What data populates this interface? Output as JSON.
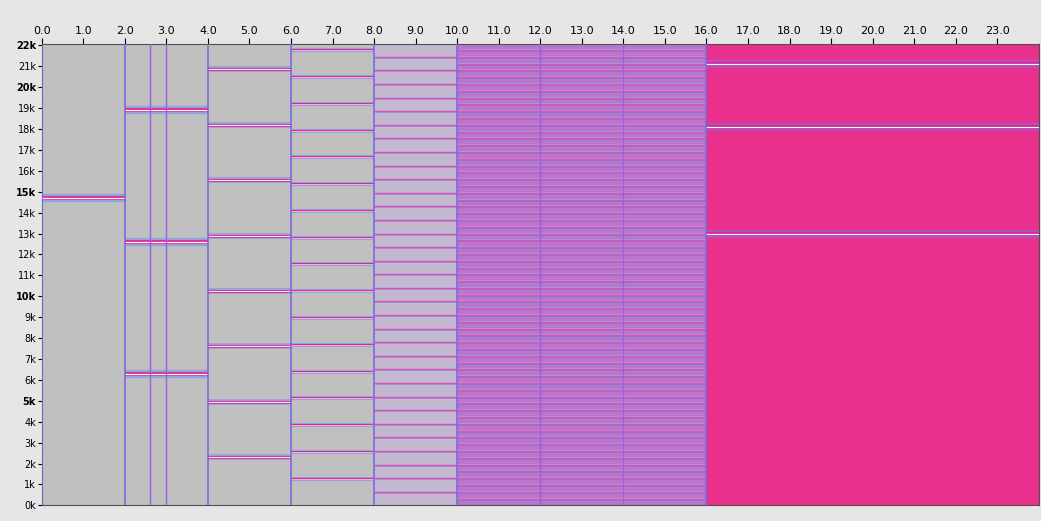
{
  "chart_data": {
    "type": "spectrogram",
    "xlim": [
      0,
      24
    ],
    "xticks": [
      {
        "value": 0,
        "label": "0.0"
      },
      {
        "value": 1,
        "label": "1.0"
      },
      {
        "value": 2,
        "label": "2.0"
      },
      {
        "value": 3,
        "label": "3.0"
      },
      {
        "value": 4,
        "label": "4.0"
      },
      {
        "value": 5,
        "label": "5.0"
      },
      {
        "value": 6,
        "label": "6.0"
      },
      {
        "value": 7,
        "label": "7.0"
      },
      {
        "value": 8,
        "label": "8.0"
      },
      {
        "value": 9,
        "label": "9.0"
      },
      {
        "value": 10,
        "label": "10.0"
      },
      {
        "value": 11,
        "label": "11.0"
      },
      {
        "value": 12,
        "label": "12.0"
      },
      {
        "value": 13,
        "label": "13.0"
      },
      {
        "value": 14,
        "label": "14.0"
      },
      {
        "value": 15,
        "label": "15.0"
      },
      {
        "value": 16,
        "label": "16.0"
      },
      {
        "value": 17,
        "label": "17.0"
      },
      {
        "value": 18,
        "label": "18.0"
      },
      {
        "value": 19,
        "label": "19.0"
      },
      {
        "value": 20,
        "label": "20.0"
      },
      {
        "value": 21,
        "label": "21.0"
      },
      {
        "value": 22,
        "label": "22.0"
      },
      {
        "value": 23,
        "label": "23.0"
      }
    ],
    "ylim": [
      0,
      22050
    ],
    "yticks": [
      {
        "value": 0,
        "label": "0k"
      },
      {
        "value": 1000,
        "label": "1k"
      },
      {
        "value": 2000,
        "label": "2k"
      },
      {
        "value": 3000,
        "label": "3k"
      },
      {
        "value": 4000,
        "label": "4k"
      },
      {
        "value": 5000,
        "label": "5k"
      },
      {
        "value": 6000,
        "label": "6k"
      },
      {
        "value": 7000,
        "label": "7k"
      },
      {
        "value": 8000,
        "label": "8k"
      },
      {
        "value": 9000,
        "label": "9k"
      },
      {
        "value": 10000,
        "label": "10k"
      },
      {
        "value": 11000,
        "label": "11k"
      },
      {
        "value": 12000,
        "label": "12k"
      },
      {
        "value": 13000,
        "label": "13k"
      },
      {
        "value": 14000,
        "label": "14k"
      },
      {
        "value": 15000,
        "label": "15k"
      },
      {
        "value": 16000,
        "label": "16k"
      },
      {
        "value": 17000,
        "label": "17k"
      },
      {
        "value": 18000,
        "label": "18k"
      },
      {
        "value": 19000,
        "label": "19k"
      },
      {
        "value": 20000,
        "label": "20k"
      },
      {
        "value": 21000,
        "label": "21k"
      },
      {
        "value": 22000,
        "label": "22k"
      }
    ],
    "segments": [
      {
        "start": 0,
        "end": 2,
        "color": "#c0c0c0",
        "frequencies": [
          14700
        ]
      },
      {
        "start": 2,
        "end": 4,
        "color": "#c0c0c0",
        "frequencies": [
          6300,
          12600,
          18900
        ]
      },
      {
        "start": 4,
        "end": 6,
        "color": "#c0c0c0",
        "frequencies": [
          2300,
          4950,
          7600,
          10250,
          12900,
          15550,
          18200,
          20850
        ]
      },
      {
        "start": 6,
        "end": 8,
        "color": "#c0c0c0",
        "frequencies": [
          1280,
          2560,
          3840,
          5120,
          6400,
          7680,
          8960,
          10240,
          11520,
          12800,
          14080,
          15360,
          16640,
          17920,
          19200,
          20480,
          21760
        ]
      },
      {
        "start": 8,
        "end": 10,
        "color": "#c4b8d0",
        "frequencies": [
          650,
          1300,
          1950,
          2600,
          3250,
          3900,
          4550,
          5200,
          5850,
          6500,
          7150,
          7800,
          8450,
          9100,
          9750,
          10400,
          11050,
          11700,
          12350,
          13000,
          13650,
          14300,
          14950,
          15600,
          16250,
          16900,
          17550,
          18200,
          18850,
          19500,
          20150,
          20800,
          21450
        ]
      },
      {
        "start": 10,
        "end": 16,
        "color": "#b678cc",
        "frequencies": [
          325,
          650,
          975,
          1300,
          1625,
          1950,
          2275,
          2600,
          2925,
          3250,
          3575,
          3900,
          4225,
          4550,
          4875,
          5200,
          5525,
          5850,
          6175,
          6500,
          6825,
          7150,
          7475,
          7800,
          8125,
          8450,
          8775,
          9100,
          9425,
          9750,
          10075,
          10400,
          10725,
          11050,
          11375,
          11700,
          12025,
          12350,
          12675,
          13000,
          13325,
          13650,
          13975,
          14300,
          14625,
          14950,
          15275,
          15600,
          15925,
          16250,
          16575,
          16900,
          17225,
          17550,
          17875,
          18200,
          18525,
          18850,
          19175,
          19500,
          19825,
          20150,
          20475,
          20800,
          21125,
          21450,
          21775
        ]
      },
      {
        "start": 16,
        "end": 24,
        "color": "#e8308c",
        "frequencies": [
          13000,
          18100,
          21100
        ]
      }
    ],
    "clicks": [
      2.6,
      3.0,
      12.0,
      14.0
    ]
  }
}
